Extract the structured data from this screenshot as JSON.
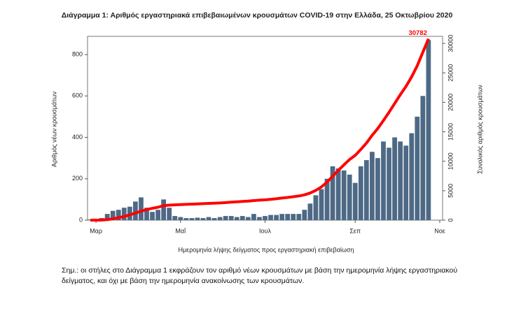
{
  "chart_data": {
    "type": "combo",
    "title": "Διάγραμμα 1: Αριθμός εργαστηριακά επιβεβαιωμένων κρουσμάτων COVID-19 στην Ελλάδα, 25 Οκτωβρίου 2020",
    "x_label": "Ημερομηνία λήψης δείγματος προς εργαστηριακή επιβεβαίωση",
    "y_label": "Αριθμός νέων κρουσμάτων",
    "y2_label": "Συνολικός αριθμός κρουσμάτων",
    "note": "Σημ.: οι στήλες στο Διάγραμμα 1 εκφράζουν τον αριθμό νέων κρουσμάτων με βάση την ημερομηνία λήψης εργαστηριακού δείγματος, και όχι με βάση την ημερομηνία ανακοίνωσης των κρουσμάτων.",
    "categories": [
      null,
      "Μαρ",
      null,
      null,
      null,
      null,
      null,
      null,
      null,
      null,
      null,
      null,
      null,
      null,
      null,
      null,
      "Μαΐ",
      null,
      null,
      null,
      null,
      null,
      null,
      null,
      null,
      null,
      null,
      null,
      null,
      null,
      null,
      "Ιουλ",
      null,
      null,
      null,
      null,
      null,
      null,
      null,
      null,
      null,
      null,
      null,
      null,
      null,
      null,
      null,
      "Σεπ",
      null,
      null,
      null,
      null,
      null,
      null,
      null,
      null,
      null,
      null,
      null,
      null,
      null,
      null,
      "Νοε"
    ],
    "series": [
      {
        "type": "bar",
        "color": "#4d6985",
        "values": [
          3,
          5,
          10,
          30,
          45,
          50,
          60,
          65,
          90,
          110,
          60,
          40,
          50,
          100,
          60,
          20,
          15,
          10,
          10,
          12,
          10,
          15,
          10,
          15,
          20,
          20,
          15,
          20,
          15,
          30,
          15,
          20,
          25,
          25,
          30,
          30,
          30,
          30,
          50,
          80,
          120,
          150,
          200,
          260,
          250,
          240,
          220,
          180,
          260,
          290,
          330,
          300,
          380,
          350,
          400,
          380,
          360,
          420,
          500,
          600,
          870,
          null,
          null
        ]
      },
      {
        "type": "line",
        "axis": "y2",
        "color": "#ff0000",
        "values": [
          0,
          5,
          15,
          80,
          230,
          420,
          620,
          900,
          1200,
          1520,
          1800,
          2000,
          2200,
          2450,
          2550,
          2600,
          2650,
          2680,
          2720,
          2760,
          2800,
          2850,
          2880,
          2920,
          2980,
          3050,
          3110,
          3170,
          3230,
          3320,
          3390,
          3450,
          3540,
          3630,
          3750,
          3860,
          3980,
          4110,
          4300,
          4600,
          5050,
          5650,
          6450,
          7450,
          8450,
          9400,
          10300,
          11000,
          12000,
          13100,
          14400,
          15560,
          16900,
          18300,
          19800,
          21300,
          22700,
          24300,
          26200,
          28500,
          30782,
          null,
          null
        ],
        "value_labels": [
          null,
          null,
          null,
          null,
          null,
          null,
          null,
          null,
          null,
          null,
          null,
          null,
          null,
          null,
          null,
          null,
          null,
          null,
          null,
          null,
          null,
          null,
          null,
          null,
          null,
          null,
          null,
          null,
          null,
          null,
          null,
          null,
          null,
          null,
          null,
          null,
          null,
          null,
          null,
          null,
          null,
          null,
          null,
          null,
          null,
          null,
          null,
          null,
          null,
          null,
          null,
          null,
          null,
          null,
          null,
          null,
          null,
          null,
          null,
          null,
          "30782",
          null,
          null
        ]
      }
    ],
    "ylim": [
      0,
      888
    ],
    "yticks": [
      0,
      200,
      400,
      600,
      800
    ],
    "y2lim": [
      0,
      31200
    ],
    "y2ticks": [
      0,
      5000,
      10000,
      15000,
      20000,
      25000,
      30000
    ]
  }
}
